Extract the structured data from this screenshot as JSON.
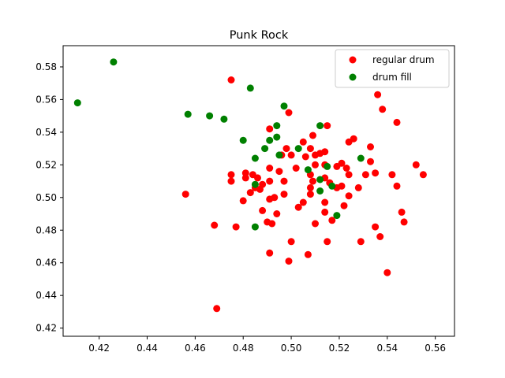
{
  "chart_data": {
    "type": "scatter",
    "title": "Punk Rock",
    "xlabel": "",
    "ylabel": "",
    "xlim": [
      0.405,
      0.568
    ],
    "ylim": [
      0.415,
      0.593
    ],
    "xticks": [
      0.42,
      0.44,
      0.46,
      0.48,
      0.5,
      0.52,
      0.54,
      0.56
    ],
    "yticks": [
      0.42,
      0.44,
      0.46,
      0.48,
      0.5,
      0.52,
      0.54,
      0.56,
      0.58
    ],
    "xtick_labels": [
      "0.42",
      "0.44",
      "0.46",
      "0.48",
      "0.50",
      "0.52",
      "0.54",
      "0.56"
    ],
    "ytick_labels": [
      "0.42",
      "0.44",
      "0.46",
      "0.48",
      "0.50",
      "0.52",
      "0.54",
      "0.56",
      "0.58"
    ],
    "grid": false,
    "legend_position": "top-right",
    "series": [
      {
        "name": "regular drum",
        "color": "#ff0000",
        "points": [
          [
            0.475,
            0.572
          ],
          [
            0.536,
            0.563
          ],
          [
            0.499,
            0.552
          ],
          [
            0.538,
            0.554
          ],
          [
            0.544,
            0.546
          ],
          [
            0.515,
            0.544
          ],
          [
            0.491,
            0.542
          ],
          [
            0.509,
            0.538
          ],
          [
            0.505,
            0.534
          ],
          [
            0.526,
            0.536
          ],
          [
            0.524,
            0.534
          ],
          [
            0.533,
            0.531
          ],
          [
            0.508,
            0.53
          ],
          [
            0.498,
            0.53
          ],
          [
            0.514,
            0.528
          ],
          [
            0.512,
            0.527
          ],
          [
            0.51,
            0.526
          ],
          [
            0.5,
            0.526
          ],
          [
            0.506,
            0.525
          ],
          [
            0.496,
            0.526
          ],
          [
            0.533,
            0.522
          ],
          [
            0.552,
            0.52
          ],
          [
            0.521,
            0.521
          ],
          [
            0.519,
            0.519
          ],
          [
            0.514,
            0.52
          ],
          [
            0.491,
            0.518
          ],
          [
            0.502,
            0.518
          ],
          [
            0.495,
            0.516
          ],
          [
            0.51,
            0.52
          ],
          [
            0.523,
            0.518
          ],
          [
            0.481,
            0.515
          ],
          [
            0.484,
            0.514
          ],
          [
            0.475,
            0.514
          ],
          [
            0.542,
            0.514
          ],
          [
            0.555,
            0.514
          ],
          [
            0.535,
            0.515
          ],
          [
            0.531,
            0.514
          ],
          [
            0.524,
            0.514
          ],
          [
            0.508,
            0.514
          ],
          [
            0.514,
            0.512
          ],
          [
            0.481,
            0.512
          ],
          [
            0.486,
            0.512
          ],
          [
            0.488,
            0.508
          ],
          [
            0.475,
            0.51
          ],
          [
            0.485,
            0.506
          ],
          [
            0.491,
            0.51
          ],
          [
            0.497,
            0.51
          ],
          [
            0.509,
            0.51
          ],
          [
            0.516,
            0.509
          ],
          [
            0.528,
            0.506
          ],
          [
            0.544,
            0.507
          ],
          [
            0.521,
            0.507
          ],
          [
            0.487,
            0.505
          ],
          [
            0.483,
            0.503
          ],
          [
            0.508,
            0.502
          ],
          [
            0.497,
            0.502
          ],
          [
            0.508,
            0.506
          ],
          [
            0.519,
            0.506
          ],
          [
            0.524,
            0.501
          ],
          [
            0.456,
            0.502
          ],
          [
            0.491,
            0.499
          ],
          [
            0.493,
            0.5
          ],
          [
            0.48,
            0.498
          ],
          [
            0.505,
            0.497
          ],
          [
            0.514,
            0.497
          ],
          [
            0.522,
            0.495
          ],
          [
            0.503,
            0.494
          ],
          [
            0.488,
            0.492
          ],
          [
            0.494,
            0.49
          ],
          [
            0.514,
            0.491
          ],
          [
            0.546,
            0.491
          ],
          [
            0.49,
            0.485
          ],
          [
            0.492,
            0.484
          ],
          [
            0.51,
            0.484
          ],
          [
            0.517,
            0.486
          ],
          [
            0.547,
            0.485
          ],
          [
            0.468,
            0.483
          ],
          [
            0.477,
            0.482
          ],
          [
            0.535,
            0.482
          ],
          [
            0.537,
            0.476
          ],
          [
            0.5,
            0.473
          ],
          [
            0.515,
            0.473
          ],
          [
            0.529,
            0.473
          ],
          [
            0.491,
            0.466
          ],
          [
            0.507,
            0.465
          ],
          [
            0.499,
            0.461
          ],
          [
            0.54,
            0.454
          ],
          [
            0.469,
            0.432
          ]
        ]
      },
      {
        "name": "drum fill",
        "color": "#008000",
        "points": [
          [
            0.426,
            0.583
          ],
          [
            0.411,
            0.558
          ],
          [
            0.483,
            0.567
          ],
          [
            0.497,
            0.556
          ],
          [
            0.457,
            0.551
          ],
          [
            0.466,
            0.55
          ],
          [
            0.472,
            0.548
          ],
          [
            0.494,
            0.544
          ],
          [
            0.512,
            0.544
          ],
          [
            0.494,
            0.537
          ],
          [
            0.48,
            0.535
          ],
          [
            0.491,
            0.535
          ],
          [
            0.489,
            0.53
          ],
          [
            0.503,
            0.53
          ],
          [
            0.495,
            0.526
          ],
          [
            0.485,
            0.524
          ],
          [
            0.529,
            0.524
          ],
          [
            0.515,
            0.519
          ],
          [
            0.507,
            0.517
          ],
          [
            0.512,
            0.511
          ],
          [
            0.485,
            0.508
          ],
          [
            0.517,
            0.507
          ],
          [
            0.512,
            0.504
          ],
          [
            0.519,
            0.489
          ],
          [
            0.485,
            0.482
          ]
        ]
      }
    ]
  }
}
